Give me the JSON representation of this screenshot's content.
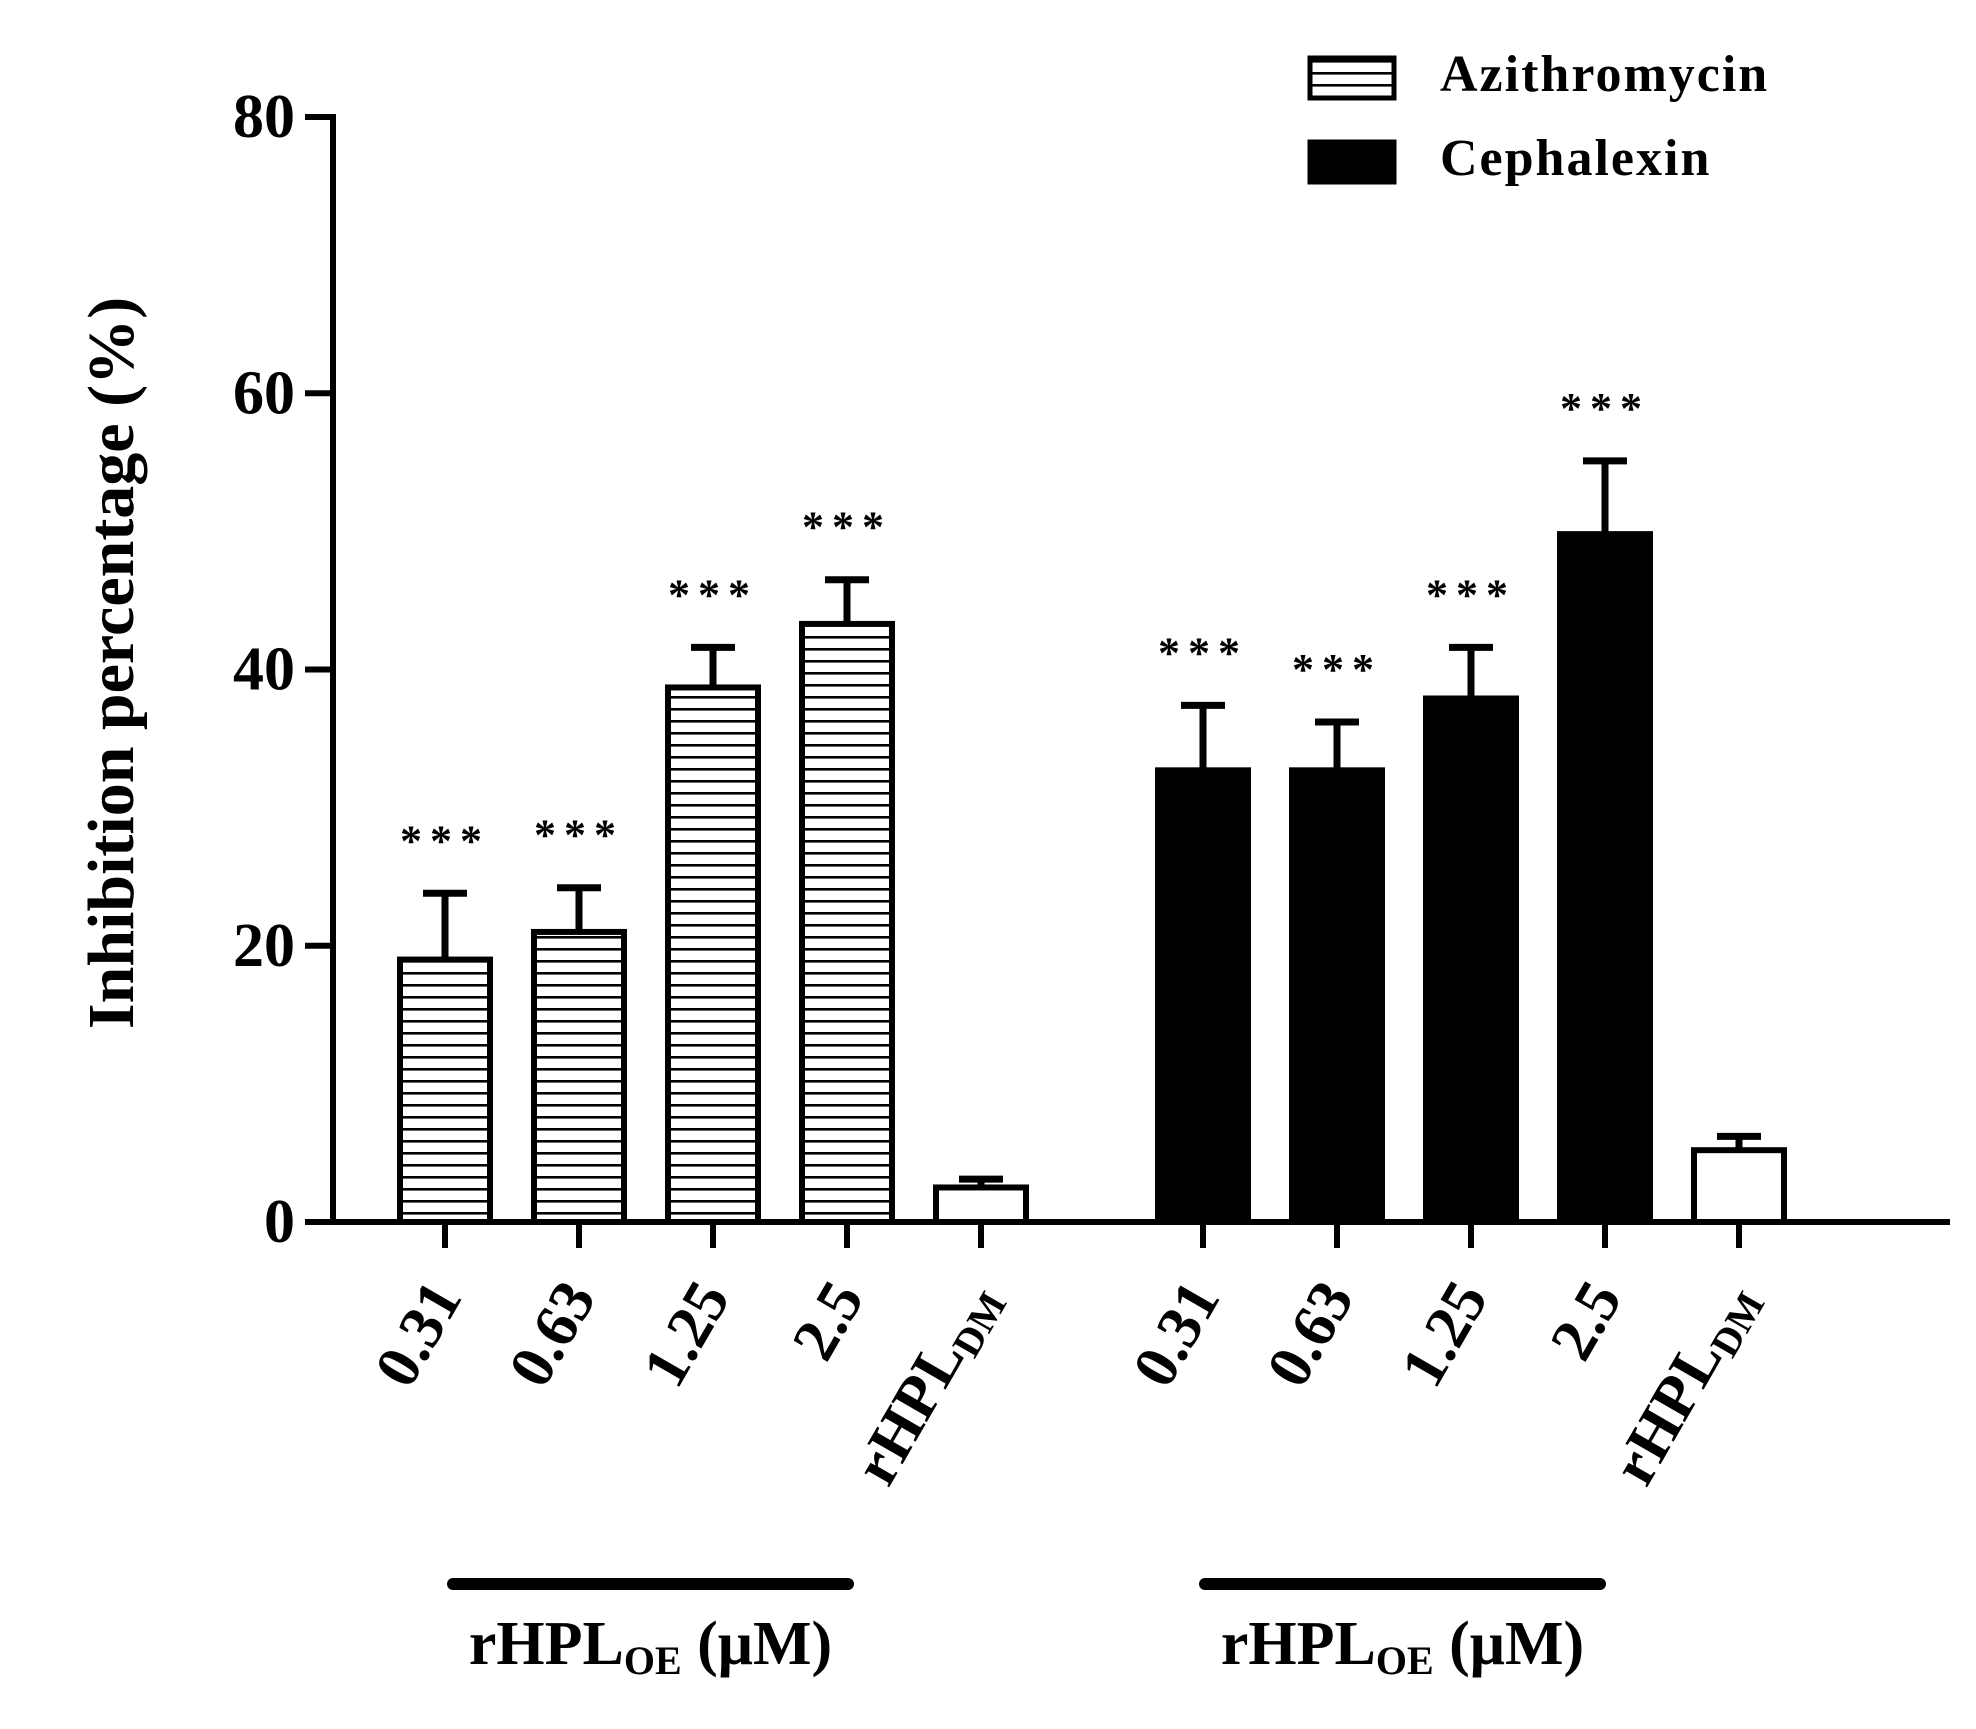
{
  "chart_data": {
    "type": "bar",
    "ylabel": "Inhibition percentage (%)",
    "ylim": [
      0,
      80
    ],
    "yticks": [
      0,
      20,
      40,
      60,
      80
    ],
    "grid": false,
    "legend_position": "top-right",
    "significance_marker": "***",
    "groups": [
      {
        "label_main": "rHPL",
        "label_sub": "OE",
        "label_unit": " (μM)",
        "series": "Azithromycin",
        "bars": [
          {
            "category": "0.31",
            "value": 19.0,
            "error": 4.8,
            "sig": true
          },
          {
            "category": "0.63",
            "value": 21.0,
            "error": 3.2,
            "sig": true
          },
          {
            "category": "1.25",
            "value": 38.7,
            "error": 2.9,
            "sig": true
          },
          {
            "category": "2.5",
            "value": 43.3,
            "error": 3.2,
            "sig": true
          },
          {
            "category": "rHPL",
            "category_sub": "DM",
            "value": 2.5,
            "error": 0.6,
            "sig": false,
            "control": true
          }
        ]
      },
      {
        "label_main": "rHPL",
        "label_sub": "OE",
        "label_unit": " (μM)",
        "series": "Cephalexin",
        "bars": [
          {
            "category": "0.31",
            "value": 32.7,
            "error": 4.7,
            "sig": true
          },
          {
            "category": "0.63",
            "value": 32.7,
            "error": 3.5,
            "sig": true
          },
          {
            "category": "1.25",
            "value": 37.9,
            "error": 3.7,
            "sig": true
          },
          {
            "category": "2.5",
            "value": 49.8,
            "error": 5.3,
            "sig": true
          },
          {
            "category": "rHPL",
            "category_sub": "DM",
            "value": 5.2,
            "error": 1.0,
            "sig": false,
            "control": true
          }
        ]
      }
    ],
    "legend": [
      {
        "name": "Azithromycin",
        "pattern": "horizontal-stripes"
      },
      {
        "name": "Cephalexin",
        "pattern": "solid"
      }
    ],
    "colors": {
      "ink": "#000000",
      "background": "#ffffff"
    }
  }
}
